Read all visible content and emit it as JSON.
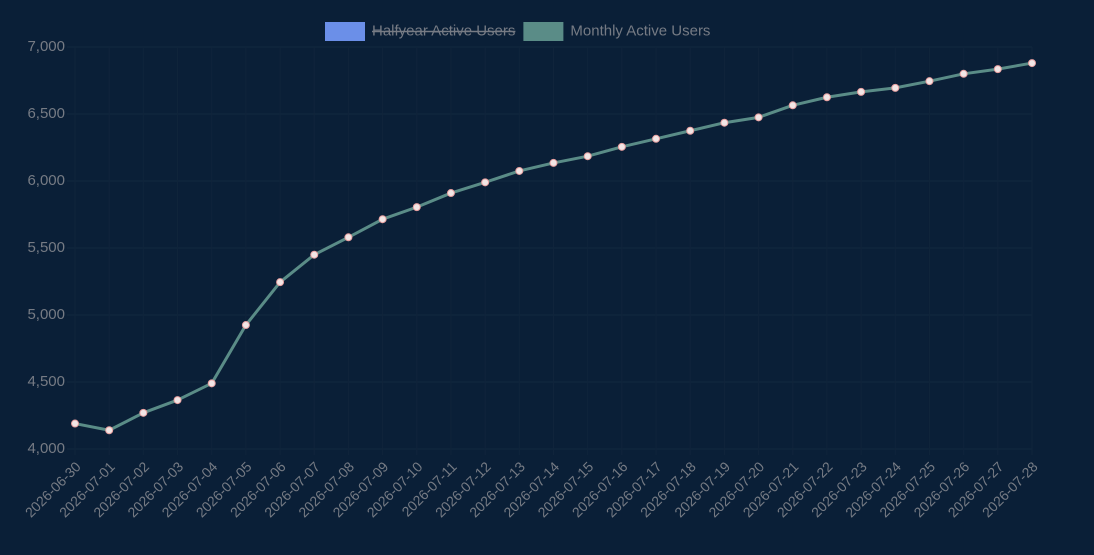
{
  "chart_data": {
    "type": "line",
    "x": [
      "2026-06-30",
      "2026-07-01",
      "2026-07-02",
      "2026-07-03",
      "2026-07-04",
      "2026-07-05",
      "2026-07-06",
      "2026-07-07",
      "2026-07-08",
      "2026-07-09",
      "2026-07-10",
      "2026-07-11",
      "2026-07-12",
      "2026-07-13",
      "2026-07-14",
      "2026-07-15",
      "2026-07-16",
      "2026-07-17",
      "2026-07-18",
      "2026-07-19",
      "2026-07-20",
      "2026-07-21",
      "2026-07-22",
      "2026-07-23",
      "2026-07-24",
      "2026-07-25",
      "2026-07-26",
      "2026-07-27",
      "2026-07-28"
    ],
    "series": [
      {
        "name": "Halfyear Active Users",
        "color": "#6b8fe8",
        "hidden": true
      },
      {
        "name": "Monthly Active Users",
        "color": "#5a8c87",
        "values": [
          4190,
          4140,
          4270,
          4365,
          4490,
          4925,
          5245,
          5450,
          5580,
          5715,
          5805,
          5910,
          5990,
          6075,
          6135,
          6185,
          6255,
          6315,
          6375,
          6435,
          6475,
          6565,
          6625,
          6665,
          6695,
          6745,
          6800,
          6835,
          6880
        ]
      }
    ],
    "ylim": [
      4000,
      7000
    ],
    "yticks": [
      {
        "value": 4000,
        "label": "4,000"
      },
      {
        "value": 4500,
        "label": "4,500"
      },
      {
        "value": 5000,
        "label": "5,000"
      },
      {
        "value": 5500,
        "label": "5,500"
      },
      {
        "value": 6000,
        "label": "6,000"
      },
      {
        "value": 6500,
        "label": "6,500"
      },
      {
        "value": 7000,
        "label": "7,000"
      }
    ],
    "grid": true,
    "legend": "top"
  }
}
